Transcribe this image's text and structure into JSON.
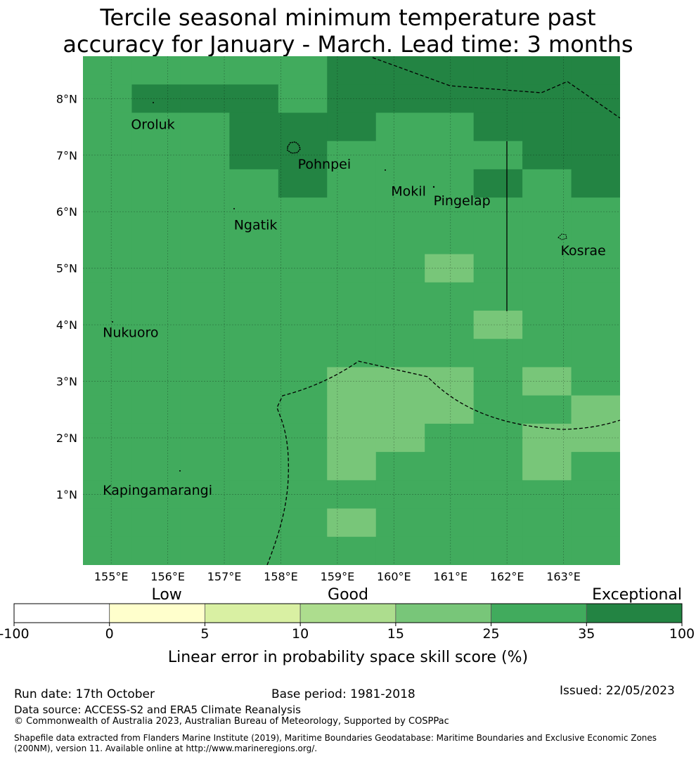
{
  "title": {
    "line1": "Tercile seasonal minimum temperature past",
    "line2": "accuracy for January - March. Lead time: 3 months"
  },
  "map": {
    "lat_labels": [
      "8°N",
      "7°N",
      "6°N",
      "5°N",
      "4°N",
      "3°N",
      "2°N",
      "1°N"
    ],
    "lat_values": [
      8,
      7,
      6,
      5,
      4,
      3,
      2,
      1
    ],
    "lon_labels": [
      "155°E",
      "156°E",
      "157°E",
      "158°E",
      "159°E",
      "160°E",
      "161°E",
      "162°E",
      "163°E"
    ],
    "lon_values": [
      155,
      156,
      157,
      158,
      159,
      160,
      161,
      162,
      163
    ],
    "lon_range": [
      154.5,
      164.0
    ],
    "lat_range": [
      -0.25,
      8.75
    ],
    "cell_size_deg": 0.833,
    "grid_rows_north_to_south": [
      "22222555555",
      "25552555555",
      "22255542555",
      "22255444255",
      "22225422525",
      "22222222222",
      "22222222222",
      "22223221222",
      "22222322222",
      "22223232122",
      "22222222222",
      "22222111212",
      "22222111221",
      "22222112211",
      "22222122212",
      "22222222222",
      "22222122222",
      "22222222222"
    ],
    "places": [
      {
        "name": "Oroluk",
        "lon": 155.35,
        "lat": 7.55
      },
      {
        "name": "Pohnpei",
        "lon": 158.3,
        "lat": 6.85
      },
      {
        "name": "Mokil",
        "lon": 159.95,
        "lat": 6.37
      },
      {
        "name": "Pingelap",
        "lon": 160.7,
        "lat": 6.2
      },
      {
        "name": "Ngatik",
        "lon": 157.17,
        "lat": 5.77
      },
      {
        "name": "Kosrae",
        "lon": 162.95,
        "lat": 5.32
      },
      {
        "name": "Nukuoro",
        "lon": 154.85,
        "lat": 3.87
      },
      {
        "name": "Kapingamarangi",
        "lon": 154.85,
        "lat": 1.08
      }
    ]
  },
  "colorbar": {
    "category_labels": [
      "Low",
      "Good",
      "Exceptional"
    ],
    "tick_labels": [
      "-100",
      "0",
      "5",
      "10",
      "15",
      "25",
      "35",
      "100"
    ],
    "colors": [
      "#ffffff",
      "#ffffcc",
      "#d9f0a3",
      "#addd8e",
      "#78c679",
      "#41ab5d",
      "#238443"
    ],
    "axis_label": "Linear error in probability space skill score (%)"
  },
  "footer": {
    "run_date": "Run date: 17th October",
    "base_period": "Base period: 1981-2018",
    "issued": "Issued: 22/05/2023",
    "data_source": "Data source: ACCESS-S2 and ERA5 Climate Reanalysis",
    "copyright": "© Commonwealth of Australia 2023, Australian Bureau of Meteorology, Supported by COSPPac",
    "shapefile": "Shapefile data extracted from Flanders Marine Institute (2019), Maritime Boundaries Geodatabase: Maritime Boundaries and Exclusive Economic Zones (200NM), version 11. Available online at http://www.marineregions.org/."
  }
}
